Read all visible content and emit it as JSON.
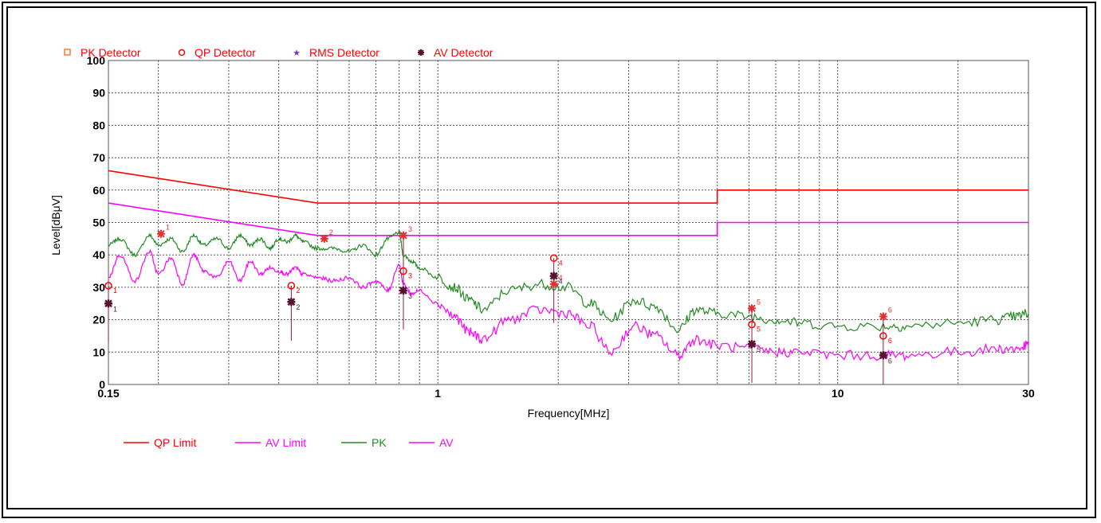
{
  "chart_data": {
    "type": "line",
    "title": "",
    "xlabel": "Frequency[MHz]",
    "ylabel": "Level[dBμV]",
    "x_scale": "log",
    "xlim": [
      0.15,
      30
    ],
    "ylim": [
      0,
      100
    ],
    "grid": true,
    "x_ticks": [
      {
        "value": 0.15,
        "label": "0.15"
      },
      {
        "value": 1,
        "label": "1"
      },
      {
        "value": 10,
        "label": "10"
      },
      {
        "value": 30,
        "label": "30"
      }
    ],
    "y_ticks": [
      0,
      10,
      20,
      30,
      40,
      50,
      60,
      70,
      80,
      90,
      100
    ],
    "detector_legend": [
      {
        "name": "PK Detector",
        "marker": "square",
        "color": "#f47a3a"
      },
      {
        "name": "QP Detector",
        "marker": "circle",
        "color": "#ff0000"
      },
      {
        "name": "RMS Detector",
        "marker": "star",
        "color": "#7a2ee0"
      },
      {
        "name": "AV Detector",
        "marker": "asterisk",
        "color": "#5a1030"
      }
    ],
    "series": [
      {
        "name": "QP Limit",
        "color": "#ff0000",
        "x": [
          0.15,
          0.5,
          0.5,
          5,
          5,
          30
        ],
        "y": [
          66,
          56,
          56,
          56,
          60,
          60
        ]
      },
      {
        "name": "AV Limit",
        "color": "#ff00ff",
        "x": [
          0.15,
          0.5,
          0.5,
          5,
          5,
          30
        ],
        "y": [
          56,
          46,
          46,
          46,
          50,
          50
        ]
      },
      {
        "name": "PK",
        "color": "#228b22",
        "x": [
          0.15,
          0.16,
          0.175,
          0.19,
          0.2,
          0.215,
          0.23,
          0.245,
          0.26,
          0.28,
          0.3,
          0.32,
          0.34,
          0.36,
          0.38,
          0.4,
          0.42,
          0.44,
          0.46,
          0.5,
          0.55,
          0.6,
          0.65,
          0.7,
          0.75,
          0.8,
          0.82,
          0.86,
          0.9,
          1,
          1.1,
          1.2,
          1.3,
          1.5,
          1.8,
          2.1,
          2.4,
          2.7,
          3.1,
          3.5,
          4,
          4.4,
          5,
          6,
          7,
          8,
          10,
          13,
          15,
          20,
          25,
          28,
          30
        ],
        "y": [
          43,
          45,
          40,
          46,
          43,
          45,
          41,
          46,
          43,
          45,
          42,
          46,
          43,
          45,
          42,
          45,
          44,
          46,
          44,
          42,
          42,
          41,
          43,
          40,
          45,
          47,
          40,
          38,
          36,
          33,
          30,
          26,
          23,
          29,
          31,
          30,
          25,
          20,
          26,
          24,
          17,
          23,
          22,
          21,
          20,
          19,
          18,
          18,
          18,
          19,
          20,
          21,
          22
        ]
      },
      {
        "name": "AV",
        "color": "#ff00ff",
        "x": [
          0.15,
          0.16,
          0.175,
          0.19,
          0.2,
          0.215,
          0.23,
          0.245,
          0.26,
          0.28,
          0.3,
          0.32,
          0.34,
          0.36,
          0.38,
          0.4,
          0.42,
          0.44,
          0.46,
          0.5,
          0.55,
          0.6,
          0.65,
          0.7,
          0.75,
          0.8,
          0.82,
          0.86,
          0.9,
          1,
          1.1,
          1.2,
          1.3,
          1.5,
          1.8,
          2.1,
          2.4,
          2.7,
          3.1,
          3.5,
          4,
          4.4,
          5,
          6,
          7,
          8,
          10,
          13,
          15,
          20,
          25,
          28,
          30
        ],
        "y": [
          33,
          40,
          32,
          41,
          34,
          39,
          31,
          40,
          35,
          33,
          38,
          32,
          38,
          34,
          36,
          35,
          34,
          36,
          34,
          33,
          32,
          33,
          30,
          32,
          29,
          37,
          31,
          28,
          29,
          25,
          21,
          16,
          14,
          20,
          23,
          22,
          18,
          10,
          18,
          15,
          9,
          14,
          12,
          11,
          10,
          10,
          9,
          9,
          9,
          10,
          11,
          11,
          12
        ]
      }
    ],
    "markers": [
      {
        "id": "1",
        "freq": 0.15,
        "pk": null,
        "qp": 30.5,
        "av": 25
      },
      {
        "id": "1",
        "freq": 0.203,
        "pk": 46.5,
        "qp": null,
        "av": null
      },
      {
        "id": "2",
        "freq": 0.43,
        "qp": 30.5,
        "av": 25.5,
        "pk": null
      },
      {
        "id": "2",
        "freq": 0.52,
        "pk": 45,
        "qp": null,
        "av": null
      },
      {
        "id": "3",
        "freq": 0.82,
        "pk": 46,
        "qp": 35,
        "av": 29
      },
      {
        "id": "4",
        "freq": 1.95,
        "pk": 31,
        "qp": 39,
        "av": 33.5
      },
      {
        "id": "5",
        "freq": 6.1,
        "pk": 23.5,
        "qp": 18.5,
        "av": 12.5
      },
      {
        "id": "6",
        "freq": 13,
        "pk": 21,
        "qp": 15,
        "av": 9
      }
    ]
  }
}
